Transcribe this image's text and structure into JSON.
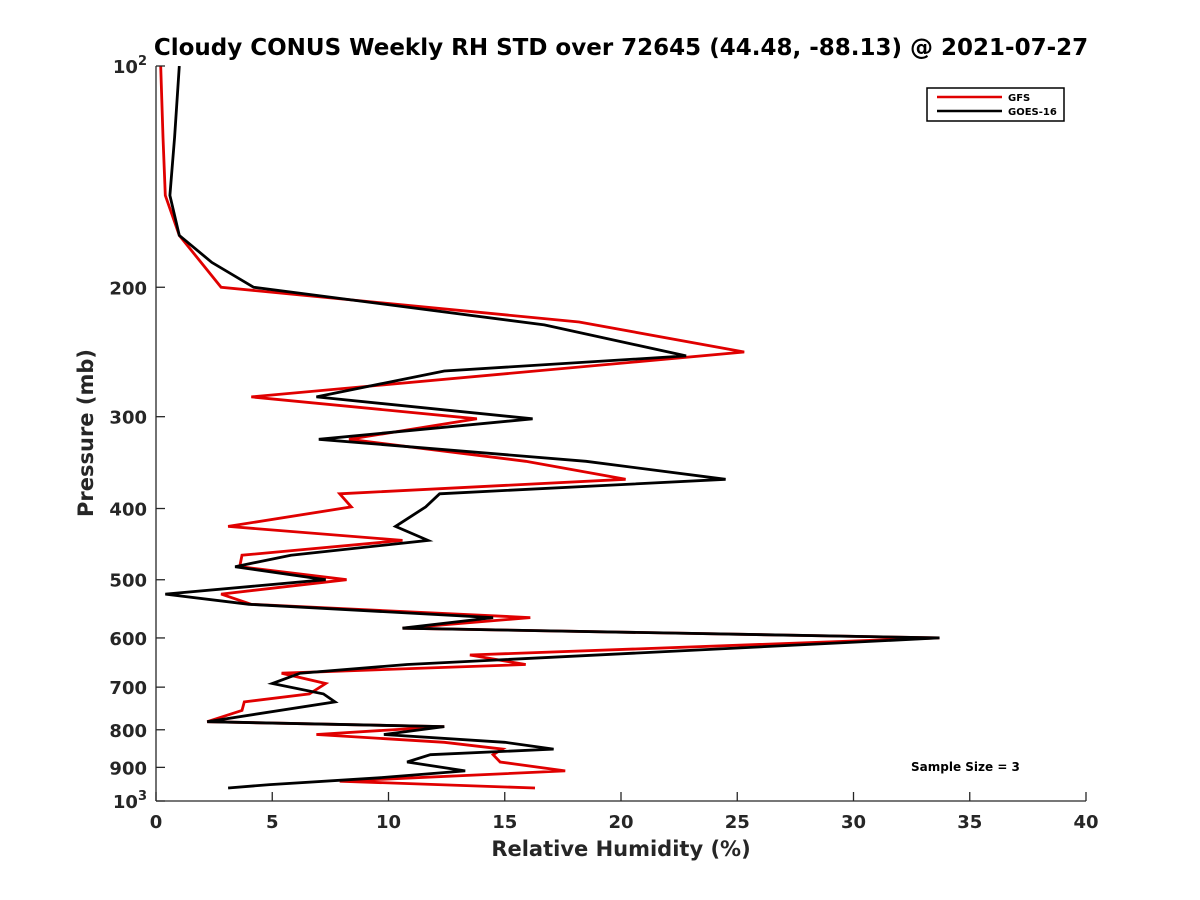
{
  "chart_data": {
    "type": "line",
    "title": "Cloudy CONUS Weekly RH STD over 72645 (44.48, -88.13) @ 2021-07-27",
    "xlabel": "Relative Humidity (%)",
    "ylabel": "Pressure (mb)",
    "xlim": [
      0,
      40
    ],
    "ylim": [
      100,
      1000
    ],
    "y_scale": "log",
    "y_reversed": true,
    "x_ticks": [
      0,
      5,
      10,
      15,
      20,
      25,
      30,
      35,
      40
    ],
    "x_tick_labels": [
      "0",
      "5",
      "10",
      "15",
      "20",
      "25",
      "30",
      "35",
      "40"
    ],
    "y_ticks": [
      200,
      300,
      400,
      500,
      600,
      700,
      800,
      900
    ],
    "y_tick_labels": [
      "200",
      "300",
      "400",
      "500",
      "600",
      "700",
      "800",
      "900"
    ],
    "y_end_labels": {
      "top_base": "10",
      "top_exp": "2",
      "bottom_base": "10",
      "bottom_exp": "3"
    },
    "grid": false,
    "legend_position": "top-right",
    "annotation": "Sample Size = 3",
    "series": [
      {
        "name": "GFS",
        "color": "#e00000",
        "points": [
          [
            0.2,
            100
          ],
          [
            0.3,
            125
          ],
          [
            0.4,
            150
          ],
          [
            1.0,
            170
          ],
          [
            2.8,
            200
          ],
          [
            18.2,
            223
          ],
          [
            25.3,
            245
          ],
          [
            4.1,
            282
          ],
          [
            13.8,
            302
          ],
          [
            8.3,
            322
          ],
          [
            15.9,
            345
          ],
          [
            20.2,
            365
          ],
          [
            7.9,
            382
          ],
          [
            8.4,
            398
          ],
          [
            3.1,
            423
          ],
          [
            10.6,
            442
          ],
          [
            3.7,
            463
          ],
          [
            3.6,
            480
          ],
          [
            8.2,
            500
          ],
          [
            2.8,
            523
          ],
          [
            4.1,
            540
          ],
          [
            16.1,
            563
          ],
          [
            10.6,
            582
          ],
          [
            33.7,
            600
          ],
          [
            13.5,
            633
          ],
          [
            15.9,
            652
          ],
          [
            5.4,
            670
          ],
          [
            7.3,
            692
          ],
          [
            6.6,
            715
          ],
          [
            3.8,
            733
          ],
          [
            3.7,
            753
          ],
          [
            2.2,
            780
          ],
          [
            12.4,
            792
          ],
          [
            6.9,
            812
          ],
          [
            12.4,
            832
          ],
          [
            14.9,
            850
          ],
          [
            14.5,
            865
          ],
          [
            14.8,
            885
          ],
          [
            17.6,
            910
          ],
          [
            7.9,
            940
          ],
          [
            16.3,
            960
          ]
        ]
      },
      {
        "name": "GOES-16",
        "color": "#000000",
        "points": [
          [
            1.0,
            100
          ],
          [
            0.8,
            125
          ],
          [
            0.6,
            150
          ],
          [
            1.0,
            170
          ],
          [
            2.4,
            185
          ],
          [
            4.2,
            200
          ],
          [
            16.7,
            225
          ],
          [
            22.8,
            248
          ],
          [
            12.4,
            260
          ],
          [
            6.9,
            282
          ],
          [
            16.2,
            302
          ],
          [
            7.0,
            322
          ],
          [
            18.5,
            345
          ],
          [
            24.5,
            365
          ],
          [
            12.2,
            382
          ],
          [
            11.6,
            398
          ],
          [
            10.3,
            423
          ],
          [
            11.7,
            442
          ],
          [
            5.8,
            463
          ],
          [
            3.4,
            480
          ],
          [
            7.3,
            500
          ],
          [
            0.4,
            523
          ],
          [
            4.0,
            540
          ],
          [
            14.5,
            563
          ],
          [
            10.6,
            582
          ],
          [
            33.7,
            600
          ],
          [
            10.8,
            652
          ],
          [
            6.2,
            670
          ],
          [
            5.0,
            692
          ],
          [
            7.2,
            715
          ],
          [
            7.7,
            733
          ],
          [
            2.2,
            780
          ],
          [
            12.4,
            792
          ],
          [
            9.8,
            812
          ],
          [
            15.0,
            832
          ],
          [
            17.1,
            850
          ],
          [
            11.8,
            865
          ],
          [
            10.8,
            885
          ],
          [
            13.3,
            910
          ],
          [
            9.6,
            930
          ],
          [
            4.9,
            950
          ],
          [
            3.1,
            960
          ]
        ]
      }
    ]
  }
}
